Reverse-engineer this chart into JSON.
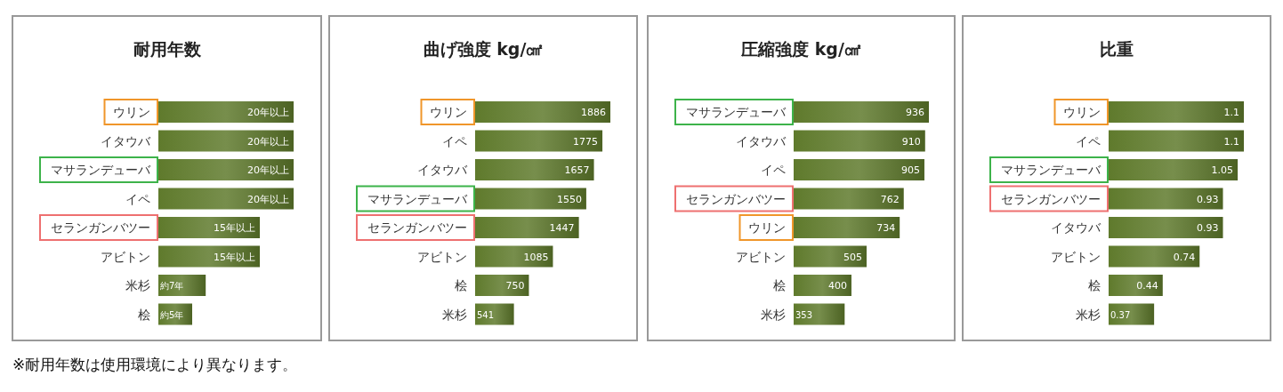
{
  "chart_data": [
    {
      "type": "bar",
      "orientation": "horizontal",
      "title": "耐用年数",
      "categories": [
        "ウリン",
        "イタウバ",
        "マサランデューバ",
        "イペ",
        "セランガンバツー",
        "アビトン",
        "米杉",
        "桧"
      ],
      "values": [
        20,
        20,
        20,
        20,
        15,
        15,
        7,
        5
      ],
      "value_labels": [
        "20年以上",
        "20年以上",
        "20年以上",
        "20年以上",
        "15年以上",
        "15年以上",
        "約7年",
        "約5年"
      ],
      "color": "#5f7a2c",
      "annotations": [
        "※耐用年数は使用環境により異なります。"
      ]
    },
    {
      "type": "bar",
      "orientation": "horizontal",
      "title": "曲げ強度 kg/㎠",
      "categories": [
        "ウリン",
        "イペ",
        "イタウバ",
        "マサランデューバ",
        "セランガンバツー",
        "アビトン",
        "桧",
        "米杉"
      ],
      "values": [
        1886,
        1775,
        1657,
        1550,
        1447,
        1085,
        750,
        541
      ],
      "data_labels": true,
      "color": "#5f7a2c"
    },
    {
      "type": "bar",
      "orientation": "horizontal",
      "title": "圧縮強度 kg/㎠",
      "categories": [
        "マサランデューバ",
        "イタウバ",
        "イペ",
        "セランガンバツー",
        "ウリン",
        "アビトン",
        "桧",
        "米杉"
      ],
      "values": [
        936,
        910,
        905,
        762,
        734,
        505,
        400,
        353
      ],
      "data_labels": true,
      "color": "#5f7a2c"
    },
    {
      "type": "bar",
      "orientation": "horizontal",
      "title": "比重",
      "categories": [
        "ウリン",
        "イペ",
        "マサランデューバ",
        "セランガンバツー",
        "イタウバ",
        "アビトン",
        "桧",
        "米杉"
      ],
      "values": [
        1.1,
        1.1,
        1.05,
        0.93,
        0.93,
        0.74,
        0.44,
        0.37
      ],
      "data_labels": true,
      "color": "#5f7a2c"
    }
  ]
}
